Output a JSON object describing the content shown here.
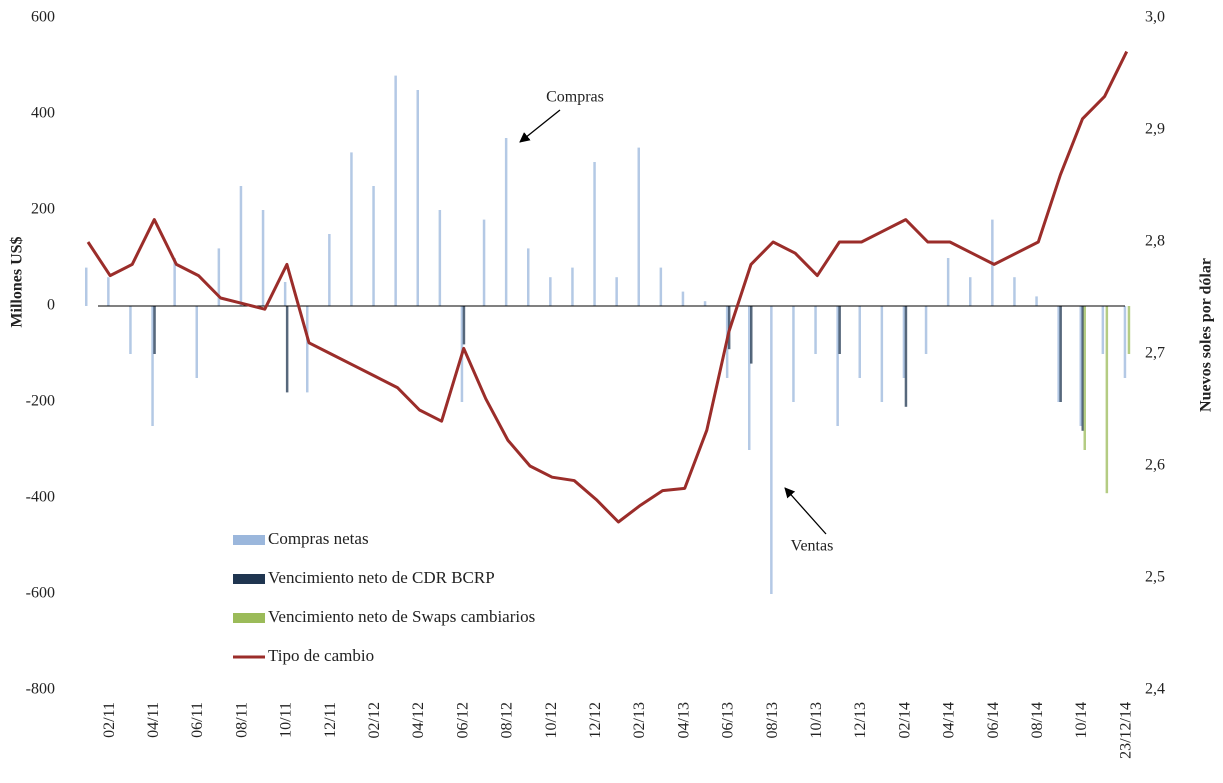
{
  "chart_data": {
    "type": "bar",
    "y_label": "Millones  US$",
    "y2_label": "Nuevos soles por dólar",
    "categories": [
      null,
      "02/11",
      null,
      "04/11",
      null,
      "06/11",
      null,
      "08/11",
      null,
      "10/11",
      null,
      "12/11",
      null,
      "02/12",
      null,
      "04/12",
      null,
      "06/12",
      null,
      "08/12",
      null,
      "10/12",
      null,
      "12/12",
      null,
      "02/13",
      null,
      "04/13",
      null,
      "06/13",
      null,
      "08/13",
      null,
      "10/13",
      null,
      "12/13",
      null,
      "02/14",
      null,
      "04/14",
      null,
      "06/14",
      null,
      "08/14",
      null,
      "10/14",
      null,
      "23/12/14"
    ],
    "ylim": [
      -800,
      600
    ],
    "yticks": [
      -800,
      -600,
      -400,
      -200,
      0,
      200,
      400,
      600
    ],
    "y2lim": [
      2.4,
      3.0
    ],
    "y2ticks": [
      {
        "value": 2.4,
        "label": "2,4"
      },
      {
        "value": 2.5,
        "label": "2,5"
      },
      {
        "value": 2.6,
        "label": "2,6"
      },
      {
        "value": 2.7,
        "label": "2,7"
      },
      {
        "value": 2.8,
        "label": "2,8"
      },
      {
        "value": 2.9,
        "label": "2,9"
      },
      {
        "value": 3.0,
        "label": "3,0"
      }
    ],
    "series": [
      {
        "name": "Compras netas",
        "color": "#9bb7dc",
        "values": [
          80,
          60,
          -100,
          -250,
          100,
          -150,
          120,
          250,
          200,
          50,
          -180,
          150,
          320,
          250,
          480,
          450,
          200,
          -200,
          180,
          350,
          120,
          60,
          80,
          300,
          60,
          330,
          80,
          30,
          10,
          -150,
          -300,
          -600,
          -200,
          -100,
          -250,
          -150,
          -200,
          -150,
          -100,
          100,
          60,
          180,
          60,
          20,
          -200,
          -250,
          -100,
          -150
        ]
      },
      {
        "name": "Vencimiento neto de CDR BCRP",
        "color": "#1f3550",
        "values": [
          null,
          null,
          null,
          -100,
          null,
          null,
          null,
          null,
          null,
          -180,
          null,
          null,
          null,
          null,
          null,
          null,
          null,
          -80,
          null,
          null,
          null,
          null,
          null,
          null,
          null,
          null,
          null,
          null,
          null,
          -90,
          -120,
          null,
          null,
          null,
          -100,
          null,
          null,
          -210,
          null,
          null,
          null,
          null,
          null,
          null,
          -200,
          -260,
          null,
          null
        ]
      },
      {
        "name": "Vencimiento neto de Swaps cambiarios",
        "color": "#9bbb59",
        "values": [
          null,
          null,
          null,
          null,
          null,
          null,
          null,
          null,
          null,
          null,
          null,
          null,
          null,
          null,
          null,
          null,
          null,
          null,
          null,
          null,
          null,
          null,
          null,
          null,
          null,
          null,
          null,
          null,
          null,
          null,
          null,
          null,
          null,
          null,
          null,
          null,
          null,
          null,
          null,
          null,
          null,
          null,
          null,
          null,
          null,
          -300,
          -390,
          -100
        ]
      },
      {
        "name": "Tipo de cambio",
        "color": "#9b2d2a",
        "type": "line",
        "axis": "y2",
        "values": [
          2.8,
          2.77,
          2.78,
          2.82,
          2.78,
          2.77,
          2.75,
          2.745,
          2.74,
          2.78,
          2.71,
          2.7,
          2.69,
          2.68,
          2.67,
          2.65,
          2.64,
          2.705,
          2.66,
          2.623,
          2.6,
          2.59,
          2.587,
          2.57,
          2.55,
          2.565,
          2.578,
          2.58,
          2.632,
          2.72,
          2.78,
          2.8,
          2.79,
          2.77,
          2.8,
          2.8,
          2.81,
          2.82,
          2.8,
          2.8,
          2.79,
          2.78,
          2.79,
          2.8,
          2.86,
          2.91,
          2.93,
          2.97
        ]
      }
    ],
    "annotations": [
      {
        "text": "Compras"
      },
      {
        "text": "Ventas"
      }
    ]
  }
}
